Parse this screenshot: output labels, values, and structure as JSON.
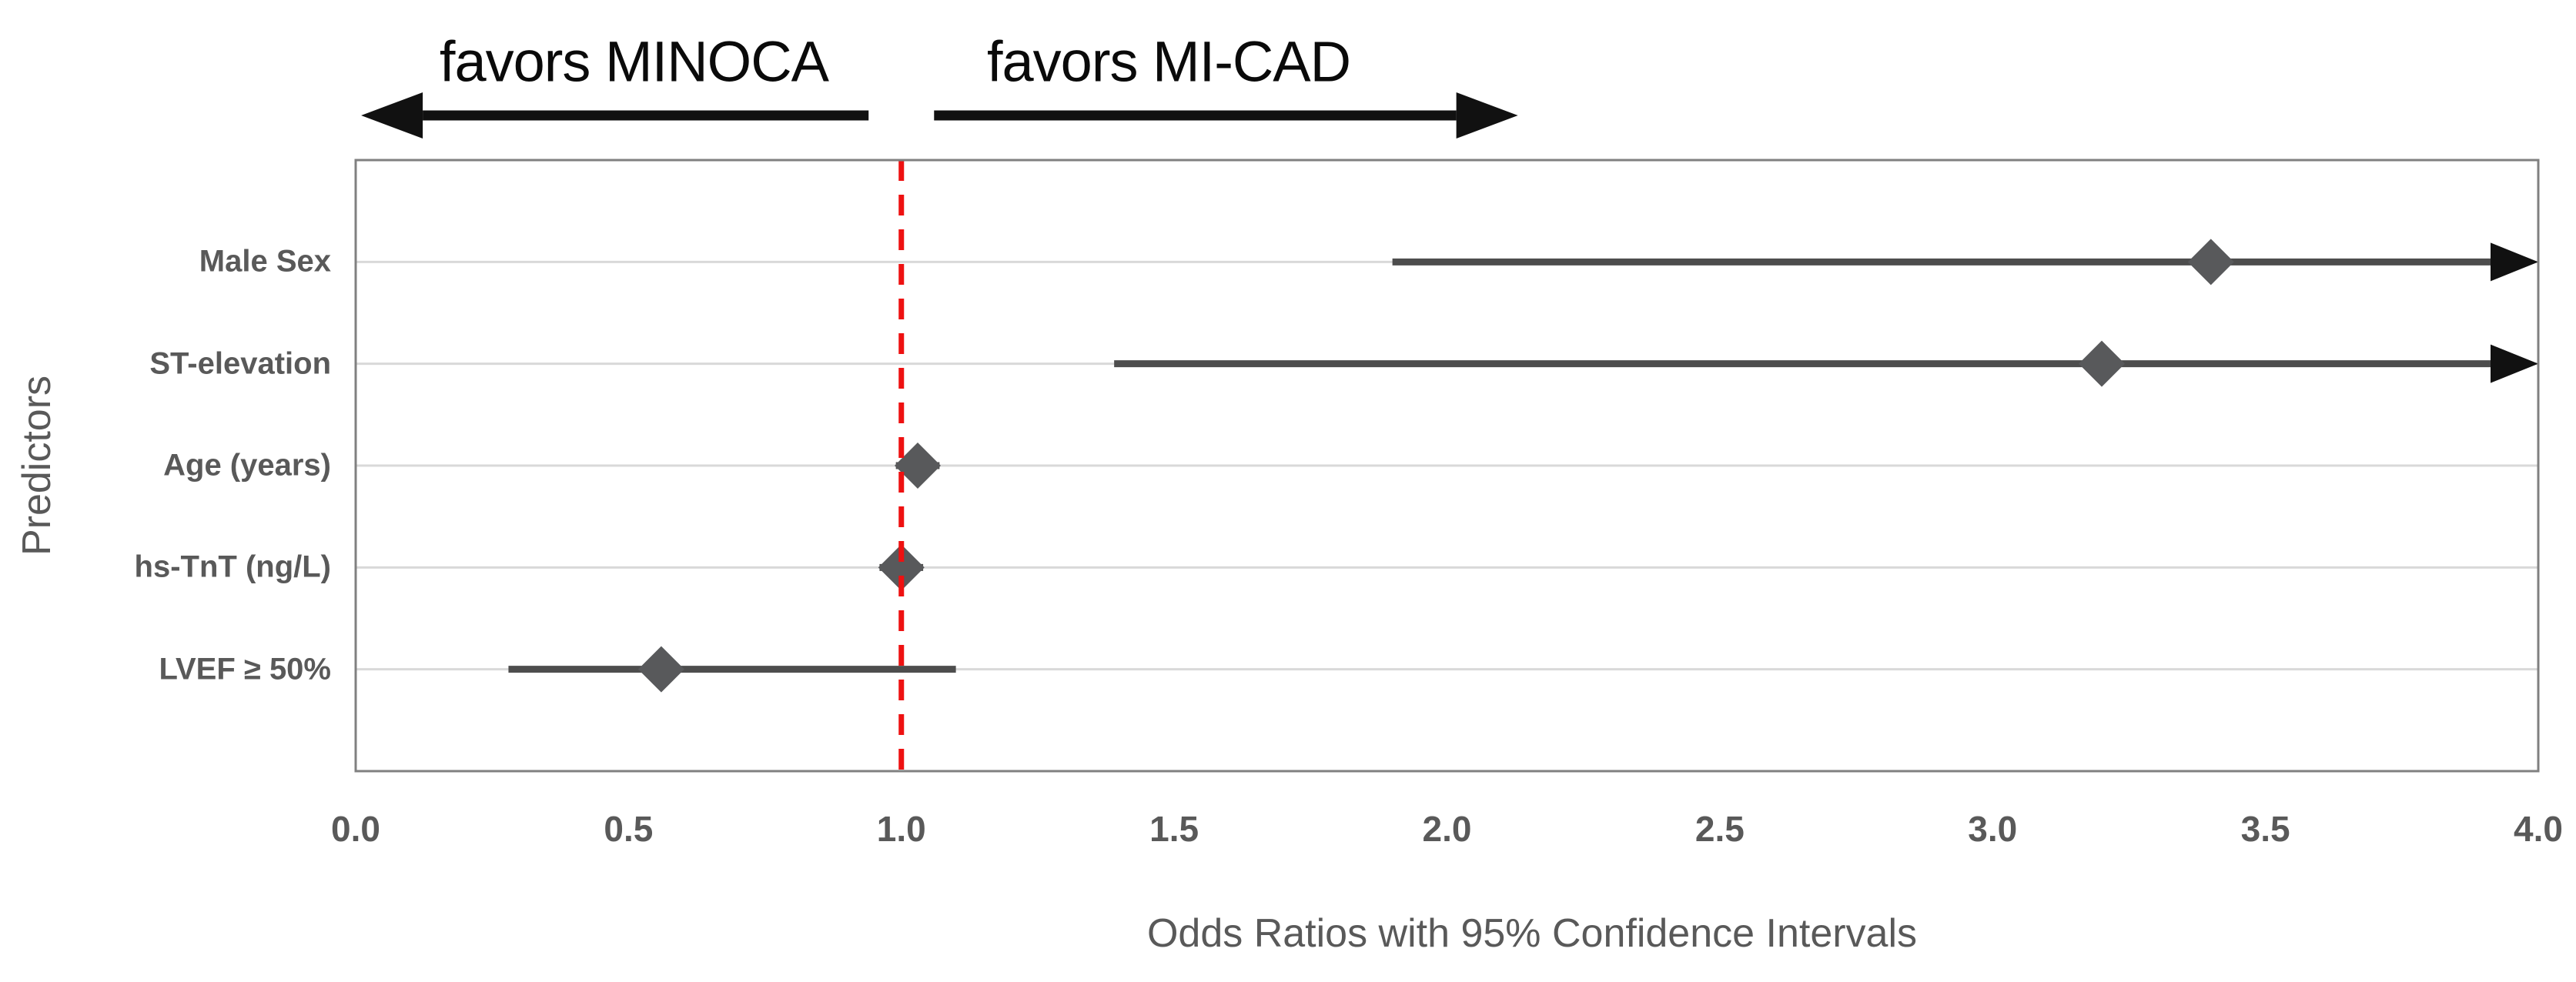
{
  "chart_data": {
    "type": "scatter",
    "subtype": "forest-plot",
    "title": "",
    "xlabel": "Odds Ratios with 95% Confidence Intervals",
    "ylabel": "Predictors",
    "xlim": [
      0.0,
      4.0
    ],
    "x_tick_values": [
      0.0,
      0.5,
      1.0,
      1.5,
      2.0,
      2.5,
      3.0,
      3.5,
      4.0
    ],
    "x_tick_labels": [
      "0.0",
      "0.5",
      "1.0",
      "1.5",
      "2.0",
      "2.5",
      "3.0",
      "3.5",
      "4.0"
    ],
    "categories": [
      "Male Sex",
      "ST-elevation",
      "Age (years)",
      "hs-TnT (ng/L)",
      "LVEF ≥ 50%"
    ],
    "points": [
      {
        "category": "Male Sex",
        "odds_ratio": 3.4,
        "ci_low": 1.9,
        "ci_high": 4.0,
        "ci_exceeds_axis": true
      },
      {
        "category": "ST-elevation",
        "odds_ratio": 3.2,
        "ci_low": 1.39,
        "ci_high": 4.0,
        "ci_exceeds_axis": true
      },
      {
        "category": "Age (years)",
        "odds_ratio": 1.03,
        "ci_low": 0.99,
        "ci_high": 1.07,
        "ci_exceeds_axis": false
      },
      {
        "category": "hs-TnT (ng/L)",
        "odds_ratio": 1.0,
        "ci_low": 0.96,
        "ci_high": 1.04,
        "ci_exceeds_axis": false
      },
      {
        "category": "LVEF ≥ 50%",
        "odds_ratio": 0.56,
        "ci_low": 0.28,
        "ci_high": 1.1,
        "ci_exceeds_axis": false
      }
    ],
    "reference_line": {
      "x": 1.0,
      "style": "dashed",
      "color": "#ee1111"
    },
    "direction_arrows": [
      {
        "label": "favors MINOCA",
        "direction": "left",
        "from_x": 0.94,
        "tip_x": 0.01,
        "text_center_x": 0.51
      },
      {
        "label": "favors MI-CAD",
        "direction": "right",
        "from_x": 1.06,
        "tip_x": 2.13,
        "text_center_x": 1.49
      }
    ],
    "grid": "horizontal",
    "legend": "none",
    "colors": {
      "marker": "#58595b",
      "ci_line": "#4d4d4d",
      "arrow": "#111111",
      "grid": "#d9d9d9",
      "frame": "#808080",
      "text": "#595959",
      "annotation_text": "#0a0a0a",
      "reference": "#ee1111",
      "background": "#ffffff"
    }
  }
}
